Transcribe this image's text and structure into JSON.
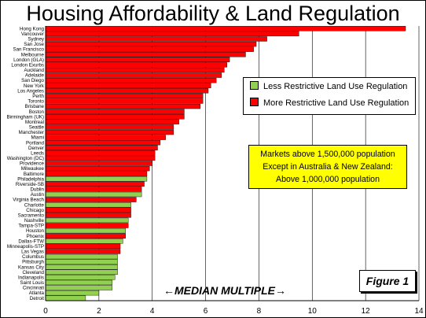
{
  "title": "Housing Affordability & Land Regulation",
  "legend": {
    "less_label": "Less Restrictive Land Use Regulation",
    "more_label": "More Restrictive Land Use Regulation",
    "less_color": "#92d050",
    "more_color": "#ff0000"
  },
  "note": {
    "line1": "Markets above 1,500,000 population",
    "line2": "Except in Australia & New Zealand:",
    "line3": "Above 1,000,000 population"
  },
  "figure_label": "Figure 1",
  "axis_label": "←MEDIAN MULTIPLE→",
  "chart_data": {
    "type": "bar",
    "orientation": "horizontal",
    "xlim": [
      0,
      14
    ],
    "x_ticks": [
      "0",
      "2",
      "4",
      "6",
      "8",
      "10",
      "12",
      "14"
    ],
    "grid": "vertical",
    "legend_position": "right",
    "categories": [
      "Hong Kong",
      "Vancouver",
      "Sydney",
      "San Jose",
      "San Francisco",
      "Melbourne",
      "London (GLA)",
      "London Exurbs",
      "Auckland",
      "Adelaide",
      "San Diego",
      "New York",
      "Los Angeles",
      "Perth",
      "Toronto",
      "Brisbane",
      "Boston",
      "Birmingham (UK)",
      "Montreal",
      "Seattle",
      "Manchester",
      "Miami",
      "Portland",
      "Denver",
      "Leeds",
      "Washington (DC)",
      "Providence",
      "Milwaukee",
      "Baltimore",
      "Philadelphia",
      "Riverside-SB",
      "Dublin",
      "Austin",
      "Virginia Beach",
      "Charlotte",
      "Chicago",
      "Sacramento",
      "Nashville",
      "Tampa-STP",
      "Houston",
      "Phoenix",
      "Dallas-FTW",
      "Minneapolis-STP",
      "Las Vegas",
      "Columbus",
      "Pittsburgh",
      "Kansas City",
      "Cleveland",
      "Indianapolis",
      "Saint Louis",
      "Cincinnati",
      "Atlanta",
      "Detroit"
    ],
    "values": [
      13.5,
      9.5,
      8.3,
      7.9,
      7.8,
      7.5,
      6.9,
      6.8,
      6.7,
      6.6,
      6.4,
      6.2,
      6.1,
      5.9,
      5.9,
      5.8,
      5.2,
      5.2,
      5.0,
      4.8,
      4.8,
      4.5,
      4.3,
      4.2,
      4.1,
      4.1,
      4.0,
      3.9,
      3.8,
      3.8,
      3.7,
      3.6,
      3.6,
      3.4,
      3.2,
      3.2,
      3.2,
      3.1,
      3.1,
      3.0,
      3.0,
      2.9,
      2.8,
      2.8,
      2.7,
      2.7,
      2.7,
      2.7,
      2.6,
      2.5,
      2.5,
      2.0,
      1.5
    ],
    "regulation": [
      "more",
      "more",
      "more",
      "more",
      "more",
      "more",
      "more",
      "more",
      "more",
      "more",
      "more",
      "more",
      "more",
      "more",
      "more",
      "more",
      "more",
      "more",
      "more",
      "more",
      "more",
      "more",
      "more",
      "more",
      "more",
      "more",
      "more",
      "more",
      "more",
      "less",
      "more",
      "more",
      "less",
      "more",
      "less",
      "more",
      "more",
      "less",
      "more",
      "less",
      "more",
      "less",
      "more",
      "more",
      "less",
      "less",
      "less",
      "less",
      "less",
      "less",
      "less",
      "less",
      "less"
    ]
  }
}
